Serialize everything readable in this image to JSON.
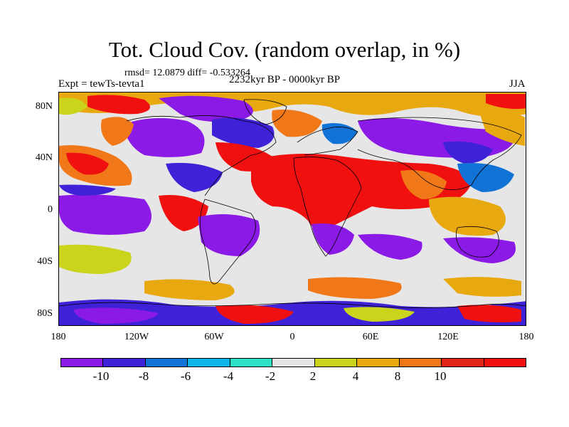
{
  "title": "Tot. Cloud Cov. (random overlap, in %)",
  "stats": "rmsd= 12.0879 diff= -0.533264",
  "experiment": "Expt = tewTs-tevta1",
  "period": "2232kyr BP - 0000kyr BP",
  "season": "JJA",
  "y_ticks": [
    "80N",
    "40N",
    "0",
    "40S",
    "80S"
  ],
  "x_ticks": [
    "180",
    "120W",
    "60W",
    "0",
    "60E",
    "120E",
    "180"
  ],
  "colorbar": {
    "labels": [
      "-10",
      "-8",
      "-6",
      "-4",
      "-2",
      "2",
      "4",
      "8",
      "10"
    ],
    "colors": [
      "#8c1ae6",
      "#3d22d8",
      "#1173d6",
      "#0fb4e8",
      "#2de2c4",
      "#e6e6e6",
      "#c9d41a",
      "#e8a80f",
      "#f07818",
      "#e02418",
      "#f01010"
    ]
  },
  "map_palette": {
    "neutral": "#e6e6e6",
    "strong_neg": "#8c1ae6",
    "neg": "#3d22d8",
    "mid_neg": "#1173d6",
    "weak_neg": "#0fb4e8",
    "slight_neg": "#2de2c4",
    "slight_pos": "#c9d41a",
    "pos": "#e8a80f",
    "strong_pos": "#f07818",
    "very_strong_pos": "#f01010"
  }
}
